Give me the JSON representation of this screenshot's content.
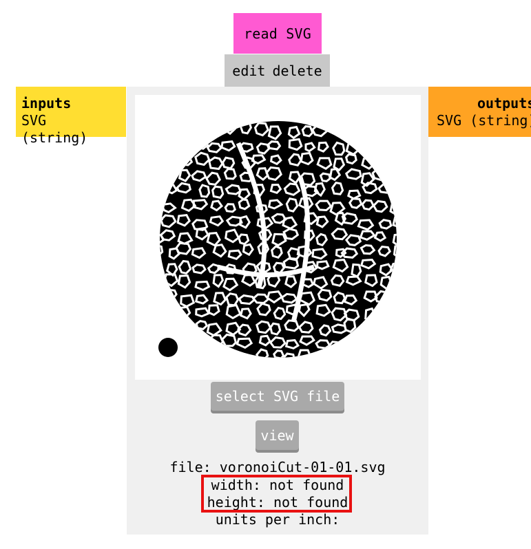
{
  "node": {
    "title": "read SVG",
    "edit_label": "edit",
    "delete_label": "delete",
    "title_color": "#ff5ad2"
  },
  "inputs": {
    "heading": "inputs",
    "type": "SVG (string)",
    "color": "#ffde31"
  },
  "outputs": {
    "heading": "outputs",
    "type": "SVG (string)",
    "color": "#ffa322"
  },
  "preview": {
    "description_icon": "voronoi-circle-preview"
  },
  "buttons": {
    "select": "select SVG file",
    "view": "view"
  },
  "info": {
    "file": "file: voronoiCut-01-01.svg",
    "width": "width: not found",
    "height": "height: not found",
    "units": "units per inch:"
  },
  "colors": {
    "panel": "#f0f0f0",
    "button": "#a9a9a9",
    "highlight": "#e81111"
  }
}
